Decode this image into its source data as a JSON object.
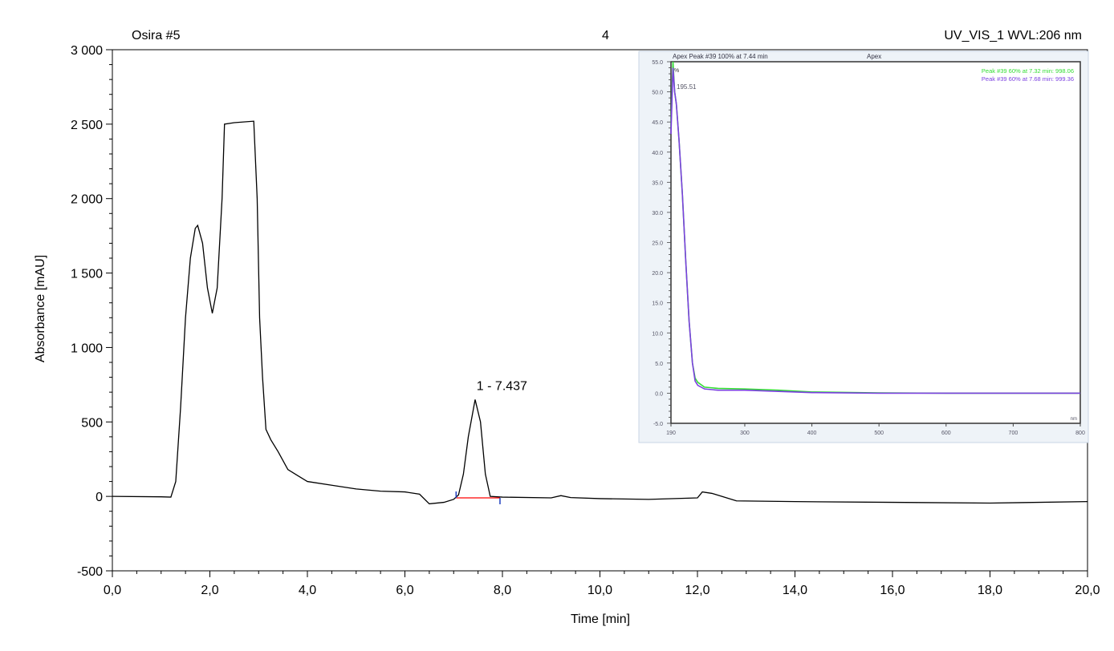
{
  "header": {
    "sample": "Osira #5",
    "injection": "4",
    "channel": "UV_VIS_1 WVL:206 nm"
  },
  "chart_data": [
    {
      "type": "line",
      "title": "Osira #5",
      "xlabel": "Time [min]",
      "ylabel": "Absorbance [mAU]",
      "xlim": [
        0,
        20
      ],
      "ylim": [
        -500,
        3000
      ],
      "xticks": [
        0,
        2,
        4,
        6,
        8,
        10,
        12,
        14,
        16,
        18,
        20
      ],
      "xtick_labels": [
        "0,0",
        "2,0",
        "4,0",
        "6,0",
        "8,0",
        "10,0",
        "12,0",
        "14,0",
        "16,0",
        "18,0",
        "20,0"
      ],
      "yticks": [
        -500,
        0,
        500,
        1000,
        1500,
        2000,
        2500,
        3000
      ],
      "ytick_labels": [
        "-500",
        "0",
        "500",
        "1 000",
        "1 500",
        "2 000",
        "2 500",
        "3 000"
      ],
      "series": [
        {
          "name": "UV_VIS_1",
          "color": "#000000",
          "x": [
            0,
            1.0,
            1.2,
            1.3,
            1.4,
            1.5,
            1.6,
            1.7,
            1.75,
            1.85,
            1.95,
            2.05,
            2.15,
            2.25,
            2.3,
            2.5,
            2.9,
            2.97,
            3.02,
            3.08,
            3.15,
            3.25,
            3.4,
            3.6,
            3.8,
            4.0,
            4.5,
            5.0,
            5.5,
            6.0,
            6.3,
            6.5,
            6.8,
            7.0,
            7.1,
            7.2,
            7.3,
            7.44,
            7.55,
            7.65,
            7.75,
            8.0,
            9.0,
            9.2,
            9.4,
            10,
            11,
            12,
            12.1,
            12.3,
            12.8,
            14,
            16,
            18,
            20
          ],
          "y": [
            0,
            -3,
            -5,
            100,
            600,
            1200,
            1600,
            1800,
            1820,
            1700,
            1400,
            1230,
            1400,
            2000,
            2500,
            2510,
            2520,
            2000,
            1200,
            800,
            450,
            380,
            300,
            180,
            140,
            100,
            75,
            50,
            35,
            30,
            15,
            -50,
            -40,
            -20,
            10,
            150,
            400,
            650,
            500,
            150,
            0,
            -5,
            -10,
            5,
            -8,
            -15,
            -20,
            -10,
            30,
            20,
            -30,
            -35,
            -40,
            -45,
            -35
          ]
        }
      ],
      "peaks": [
        {
          "label": "1 - 7.437",
          "time": 7.437,
          "height": 650,
          "baseline_start": 7.05,
          "baseline_end": 7.95,
          "baseline_color": "#ff0000",
          "marker_color": "#1f3fbf"
        }
      ]
    },
    {
      "type": "line",
      "title": "Apex Peak #39 100% at 7.44 min",
      "subtitle": "Apex",
      "ylabel": "%",
      "xlabel": "nm",
      "xlim": [
        190,
        800
      ],
      "ylim": [
        -5,
        55
      ],
      "xticks": [
        190,
        300,
        400,
        500,
        600,
        700,
        800
      ],
      "xtick_labels": [
        "190",
        "300",
        "400",
        "500",
        "600",
        "700",
        "800"
      ],
      "yticks": [
        -5,
        0,
        5,
        10,
        15,
        20,
        25,
        30,
        35,
        40,
        45,
        50,
        55
      ],
      "ytick_labels": [
        "-5.0",
        "0.0",
        "5.0",
        "10.0",
        "15.0",
        "20.0",
        "25.0",
        "30.0",
        "35.0",
        "40.0",
        "45.0",
        "50.0",
        "55.0"
      ],
      "annotation": "195.51",
      "series": [
        {
          "name": "Peak #39 60% at 7.32 min: 998.06",
          "color": "#33dd33",
          "x": [
            190,
            193,
            195.5,
            198,
            202,
            207,
            212,
            217,
            222,
            226,
            230,
            240,
            260,
            300,
            350,
            400,
            500,
            600,
            700,
            800
          ],
          "y": [
            44,
            55,
            50,
            48,
            42,
            33,
            22,
            12,
            5,
            2.5,
            1.8,
            1.0,
            0.8,
            0.7,
            0.5,
            0.2,
            0.05,
            0,
            0,
            0
          ]
        },
        {
          "name": "Peak #39 60% at 7.68 min: 999.36",
          "color": "#7b3fe0",
          "x": [
            190,
            193,
            195.5,
            198,
            202,
            207,
            212,
            217,
            222,
            226,
            230,
            240,
            260,
            300,
            350,
            400,
            500,
            600,
            700,
            800
          ],
          "y": [
            43,
            54,
            50,
            48,
            42,
            33,
            22,
            12,
            5,
            2,
            1.3,
            0.7,
            0.5,
            0.5,
            0.3,
            0.1,
            0,
            0,
            0,
            0
          ]
        }
      ]
    }
  ]
}
